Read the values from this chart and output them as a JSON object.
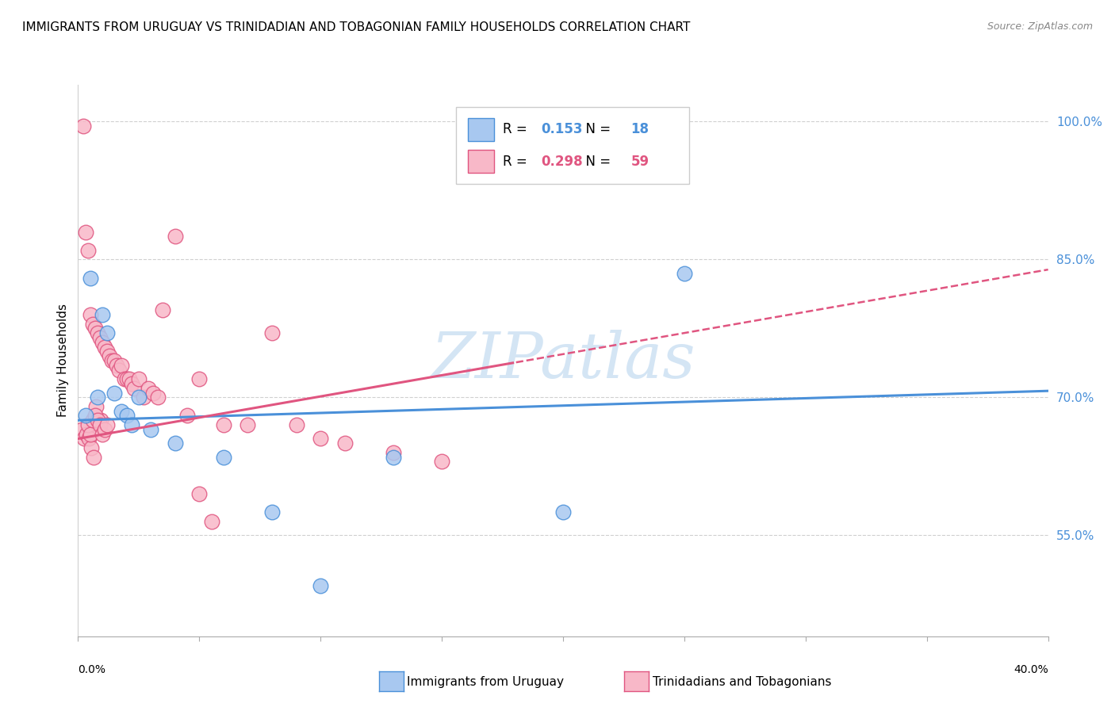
{
  "title": "IMMIGRANTS FROM URUGUAY VS TRINIDADIAN AND TOBAGONIAN FAMILY HOUSEHOLDS CORRELATION CHART",
  "source": "Source: ZipAtlas.com",
  "ylabel": "Family Households",
  "right_yticks": [
    55.0,
    70.0,
    85.0,
    100.0
  ],
  "legend_blue_r": "0.153",
  "legend_blue_n": "18",
  "legend_pink_r": "0.298",
  "legend_pink_n": "59",
  "blue_color": "#A8C8F0",
  "pink_color": "#F8B8C8",
  "blue_line_color": "#4A90D9",
  "pink_line_color": "#E05580",
  "watermark": "ZIPatlas",
  "x_min": 0.0,
  "x_max": 40.0,
  "y_min": 44.0,
  "y_max": 104.0,
  "blue_points_x": [
    0.5,
    1.0,
    1.2,
    1.5,
    1.8,
    2.0,
    2.2,
    2.5,
    3.0,
    4.0,
    6.0,
    8.0,
    10.0,
    13.0,
    20.0,
    25.0,
    0.3,
    0.8
  ],
  "blue_points_y": [
    83.0,
    79.0,
    77.0,
    70.5,
    68.5,
    68.0,
    67.0,
    70.0,
    66.5,
    65.0,
    63.5,
    57.5,
    49.5,
    63.5,
    57.5,
    83.5,
    68.0,
    70.0
  ],
  "pink_points_x": [
    0.2,
    0.3,
    0.4,
    0.5,
    0.6,
    0.7,
    0.8,
    0.9,
    1.0,
    1.1,
    1.2,
    1.3,
    1.4,
    1.5,
    1.6,
    1.7,
    1.8,
    1.9,
    2.0,
    2.1,
    2.2,
    2.3,
    2.5,
    2.7,
    2.9,
    3.1,
    3.3,
    3.5,
    4.0,
    4.5,
    5.0,
    5.5,
    6.0,
    7.0,
    8.0,
    9.0,
    10.0,
    11.0,
    13.0,
    15.0,
    0.15,
    0.25,
    0.35,
    0.45,
    0.55,
    0.65,
    0.75,
    0.85,
    0.95,
    0.4,
    0.5,
    0.6,
    0.7,
    0.8,
    0.9,
    1.0,
    1.1,
    1.2,
    5.0
  ],
  "pink_points_y": [
    99.5,
    88.0,
    86.0,
    79.0,
    78.0,
    77.5,
    77.0,
    76.5,
    76.0,
    75.5,
    75.0,
    74.5,
    74.0,
    74.0,
    73.5,
    73.0,
    73.5,
    72.0,
    72.0,
    72.0,
    71.5,
    71.0,
    72.0,
    70.0,
    71.0,
    70.5,
    70.0,
    79.5,
    87.5,
    68.0,
    72.0,
    56.5,
    67.0,
    67.0,
    77.0,
    67.0,
    65.5,
    65.0,
    64.0,
    63.0,
    66.5,
    65.5,
    66.0,
    65.5,
    64.5,
    63.5,
    69.0,
    67.0,
    67.5,
    67.0,
    66.0,
    67.5,
    68.0,
    67.5,
    67.0,
    66.0,
    66.5,
    67.0,
    59.5
  ],
  "blue_trend_slope": 0.08,
  "blue_trend_intercept": 67.5,
  "pink_trend_slope": 0.46,
  "pink_trend_intercept": 65.5,
  "pink_solid_end": 18.0
}
